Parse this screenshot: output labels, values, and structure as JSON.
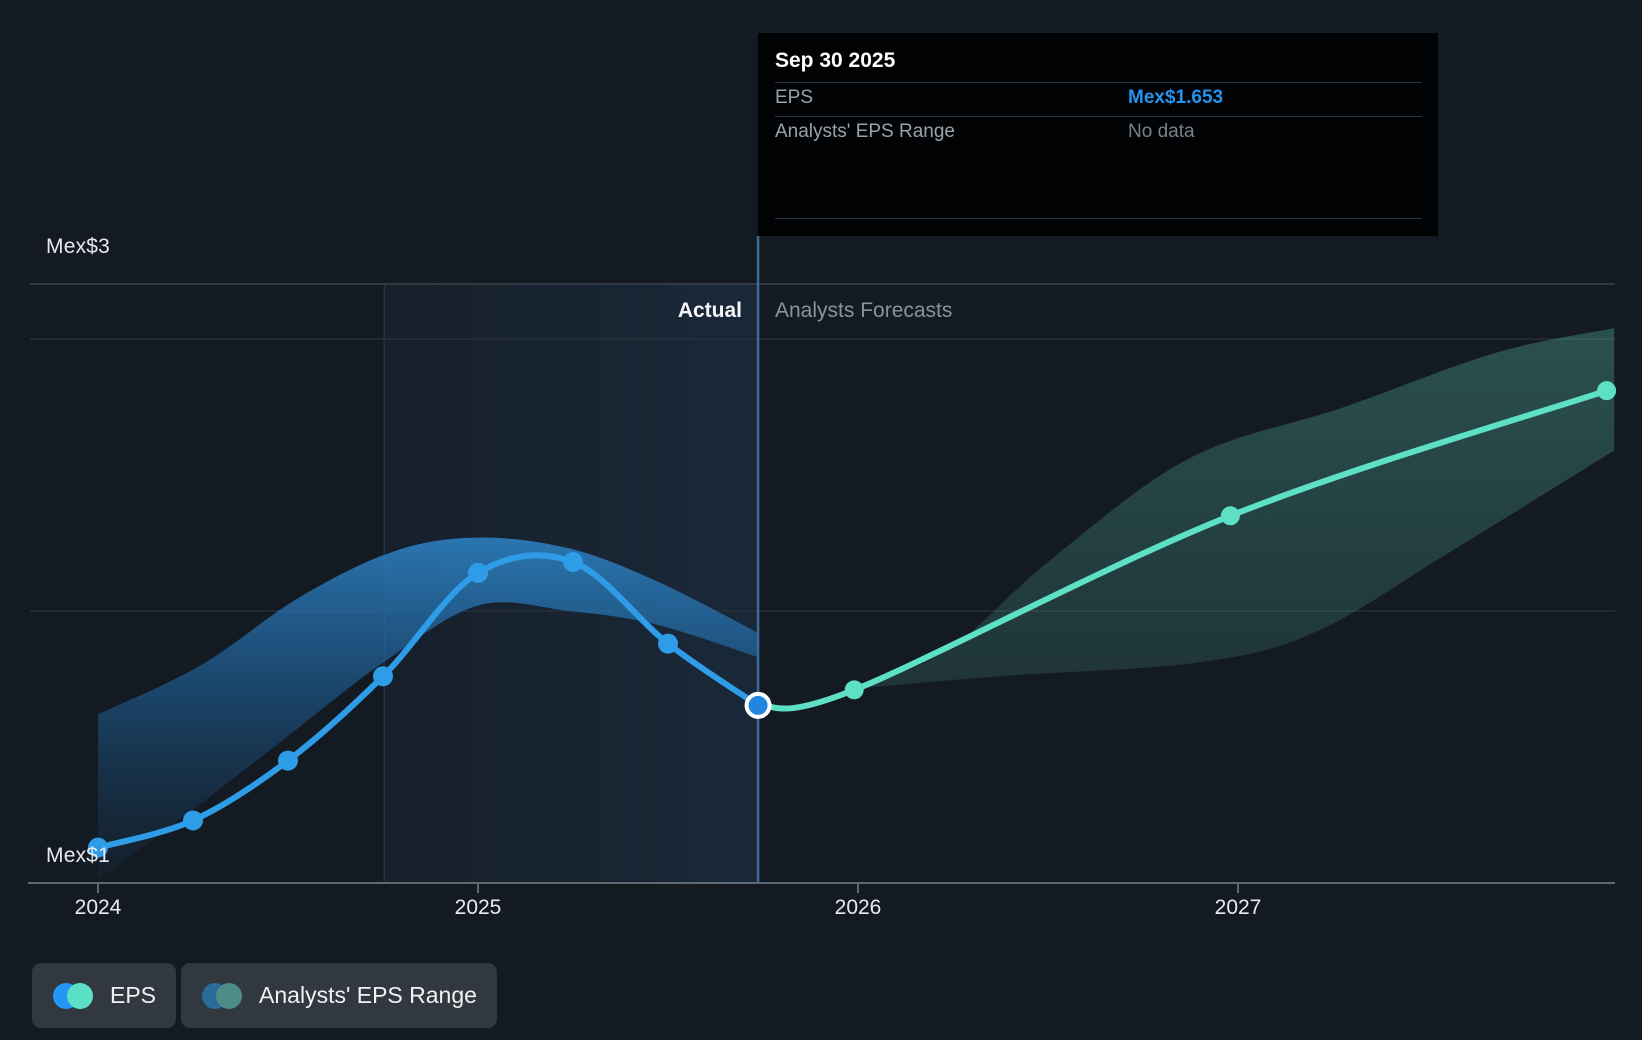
{
  "page": {
    "background": "#141a22"
  },
  "tooltip": {
    "date": "Sep 30 2025",
    "rows": [
      {
        "label": "EPS",
        "value": "Mex$1.653"
      },
      {
        "label": "Analysts' EPS Range",
        "value": "No data"
      }
    ]
  },
  "axes": {
    "y_top_label": "Mex$3",
    "y_bottom_label": "Mex$1",
    "x_ticks": [
      "2024",
      "2025",
      "2026",
      "2027"
    ]
  },
  "sections": {
    "actual": "Actual",
    "forecast": "Analysts Forecasts"
  },
  "legend": [
    {
      "label": "EPS",
      "dots": [
        "#2196f3",
        "#5ce0c5"
      ]
    },
    {
      "label": "Analysts' EPS Range",
      "dots": [
        "#2b6b9c",
        "#4e8c86"
      ]
    }
  ],
  "colors": {
    "actual_line": "#2f9ce7",
    "forecast_line": "#5de0c5",
    "value_blue": "#2593ee",
    "muted_text": "#8a929d",
    "divider": "#3c6b9a",
    "axis_line": "#5f6771",
    "gridline": "#2a333d",
    "top_border": "#39424d",
    "tooltip_bg": "#010204",
    "legend_pill_bg": "#31383f"
  },
  "chart_data": {
    "type": "line",
    "title": "",
    "x": {
      "unit": "year",
      "ticks": [
        2024,
        2025,
        2026,
        2027
      ],
      "range": [
        2023.82,
        2027.99
      ]
    },
    "y": {
      "unit": "Mex$",
      "gridline_values": [
        1,
        2,
        3
      ],
      "labeled_gridlines": [
        {
          "value": 3,
          "label": "Mex$3"
        },
        {
          "value": 1,
          "label": "Mex$1"
        }
      ]
    },
    "divider": {
      "date": "Sep 30 2025",
      "x": 2025.737,
      "label_left": "Actual",
      "label_right": "Analysts Forecasts"
    },
    "highlight_span": [
      2024.753,
      2025.737
    ],
    "selected_point": {
      "date": "Sep 30 2025",
      "x": 2025.737,
      "y": 1.653
    },
    "series": [
      {
        "name": "EPS",
        "kind": "actual",
        "color": "#2f9ce7",
        "points": [
          [
            2024.0,
            1.13
          ],
          [
            2024.25,
            1.23
          ],
          [
            2024.5,
            1.45
          ],
          [
            2024.75,
            1.76
          ],
          [
            2025.0,
            2.14
          ],
          [
            2025.25,
            2.18
          ],
          [
            2025.5,
            1.88
          ],
          [
            2025.737,
            1.653
          ]
        ]
      },
      {
        "name": "EPS forecast",
        "kind": "forecast",
        "color": "#5de0c5",
        "points": [
          [
            2025.737,
            1.653
          ],
          [
            2025.99,
            1.71
          ],
          [
            2026.98,
            2.35
          ],
          [
            2027.97,
            2.81
          ]
        ]
      }
    ],
    "bands": [
      {
        "name": "actual-eps-range",
        "top": [
          [
            2024.0,
            1.62
          ],
          [
            2024.27,
            1.8
          ],
          [
            2024.53,
            2.05
          ],
          [
            2024.78,
            2.22
          ],
          [
            2025.0,
            2.27
          ],
          [
            2025.24,
            2.23
          ],
          [
            2025.47,
            2.11
          ],
          [
            2025.737,
            1.92
          ]
        ],
        "bottom": [
          [
            2025.737,
            1.83
          ],
          [
            2025.47,
            1.95
          ],
          [
            2025.24,
            2.0
          ],
          [
            2025.0,
            2.02
          ],
          [
            2024.75,
            1.81
          ],
          [
            2024.5,
            1.54
          ],
          [
            2024.25,
            1.27
          ],
          [
            2024.0,
            1.01
          ]
        ]
      },
      {
        "name": "analysts-eps-range",
        "top": [
          [
            2026.0,
            1.72
          ],
          [
            2026.24,
            1.86
          ],
          [
            2026.5,
            2.18
          ],
          [
            2026.87,
            2.56
          ],
          [
            2027.28,
            2.75
          ],
          [
            2027.68,
            2.95
          ],
          [
            2027.99,
            3.04
          ]
        ],
        "bottom": [
          [
            2027.99,
            2.59
          ],
          [
            2027.55,
            2.21
          ],
          [
            2027.2,
            1.92
          ],
          [
            2026.89,
            1.81
          ],
          [
            2026.37,
            1.76
          ],
          [
            2026.0,
            1.715
          ]
        ]
      }
    ]
  }
}
